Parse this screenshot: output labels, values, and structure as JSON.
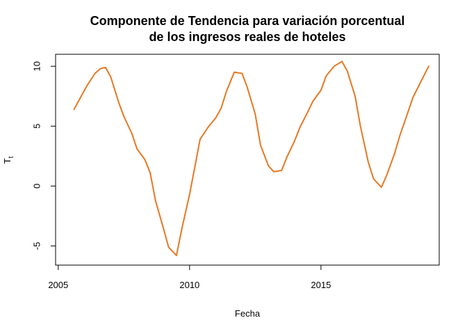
{
  "chart_data": {
    "type": "line",
    "title": [
      "Componente de Tendencia para variación porcentual",
      "de los ingresos reales de hoteles"
    ],
    "xlabel": "Fecha",
    "ylabel": "T",
    "ylabel_sub": "t",
    "xlim": [
      2004.9,
      2019.5
    ],
    "ylim": [
      -6.6,
      11.0
    ],
    "x_ticks": [
      2005,
      2010,
      2015
    ],
    "y_ticks": [
      -5,
      0,
      5,
      10
    ],
    "grid": false,
    "legend": "none",
    "series": [
      {
        "color": "#E87722",
        "x": [
          2005.6,
          2005.9,
          2006.1,
          2006.4,
          2006.6,
          2006.8,
          2007.0,
          2007.3,
          2007.5,
          2007.8,
          2008.0,
          2008.3,
          2008.5,
          2008.7,
          2009.0,
          2009.2,
          2009.5,
          2009.7,
          2010.0,
          2010.2,
          2010.4,
          2010.7,
          2011.0,
          2011.2,
          2011.4,
          2011.7,
          2012.0,
          2012.2,
          2012.5,
          2012.7,
          2013.0,
          2013.2,
          2013.5,
          2013.7,
          2014.0,
          2014.2,
          2014.5,
          2014.7,
          2015.0,
          2015.2,
          2015.5,
          2015.8,
          2016.0,
          2016.3,
          2016.5,
          2016.8,
          2017.0,
          2017.3,
          2017.5,
          2017.8,
          2018.0,
          2018.3,
          2018.5,
          2018.8,
          2019.1
        ],
        "y": [
          6.4,
          7.6,
          8.4,
          9.4,
          9.8,
          9.9,
          9.1,
          7.0,
          5.8,
          4.4,
          3.1,
          2.2,
          1.1,
          -1.2,
          -3.5,
          -5.1,
          -5.8,
          -3.6,
          -0.7,
          1.6,
          3.9,
          4.9,
          5.7,
          6.5,
          7.9,
          9.5,
          9.4,
          8.2,
          6.0,
          3.4,
          1.7,
          1.2,
          1.3,
          2.4,
          3.8,
          4.9,
          6.2,
          7.1,
          8.0,
          9.2,
          10.0,
          10.4,
          9.6,
          7.5,
          5.0,
          2.0,
          0.6,
          -0.1,
          0.9,
          2.7,
          4.2,
          6.1,
          7.4,
          8.7,
          10.0
        ]
      }
    ]
  }
}
